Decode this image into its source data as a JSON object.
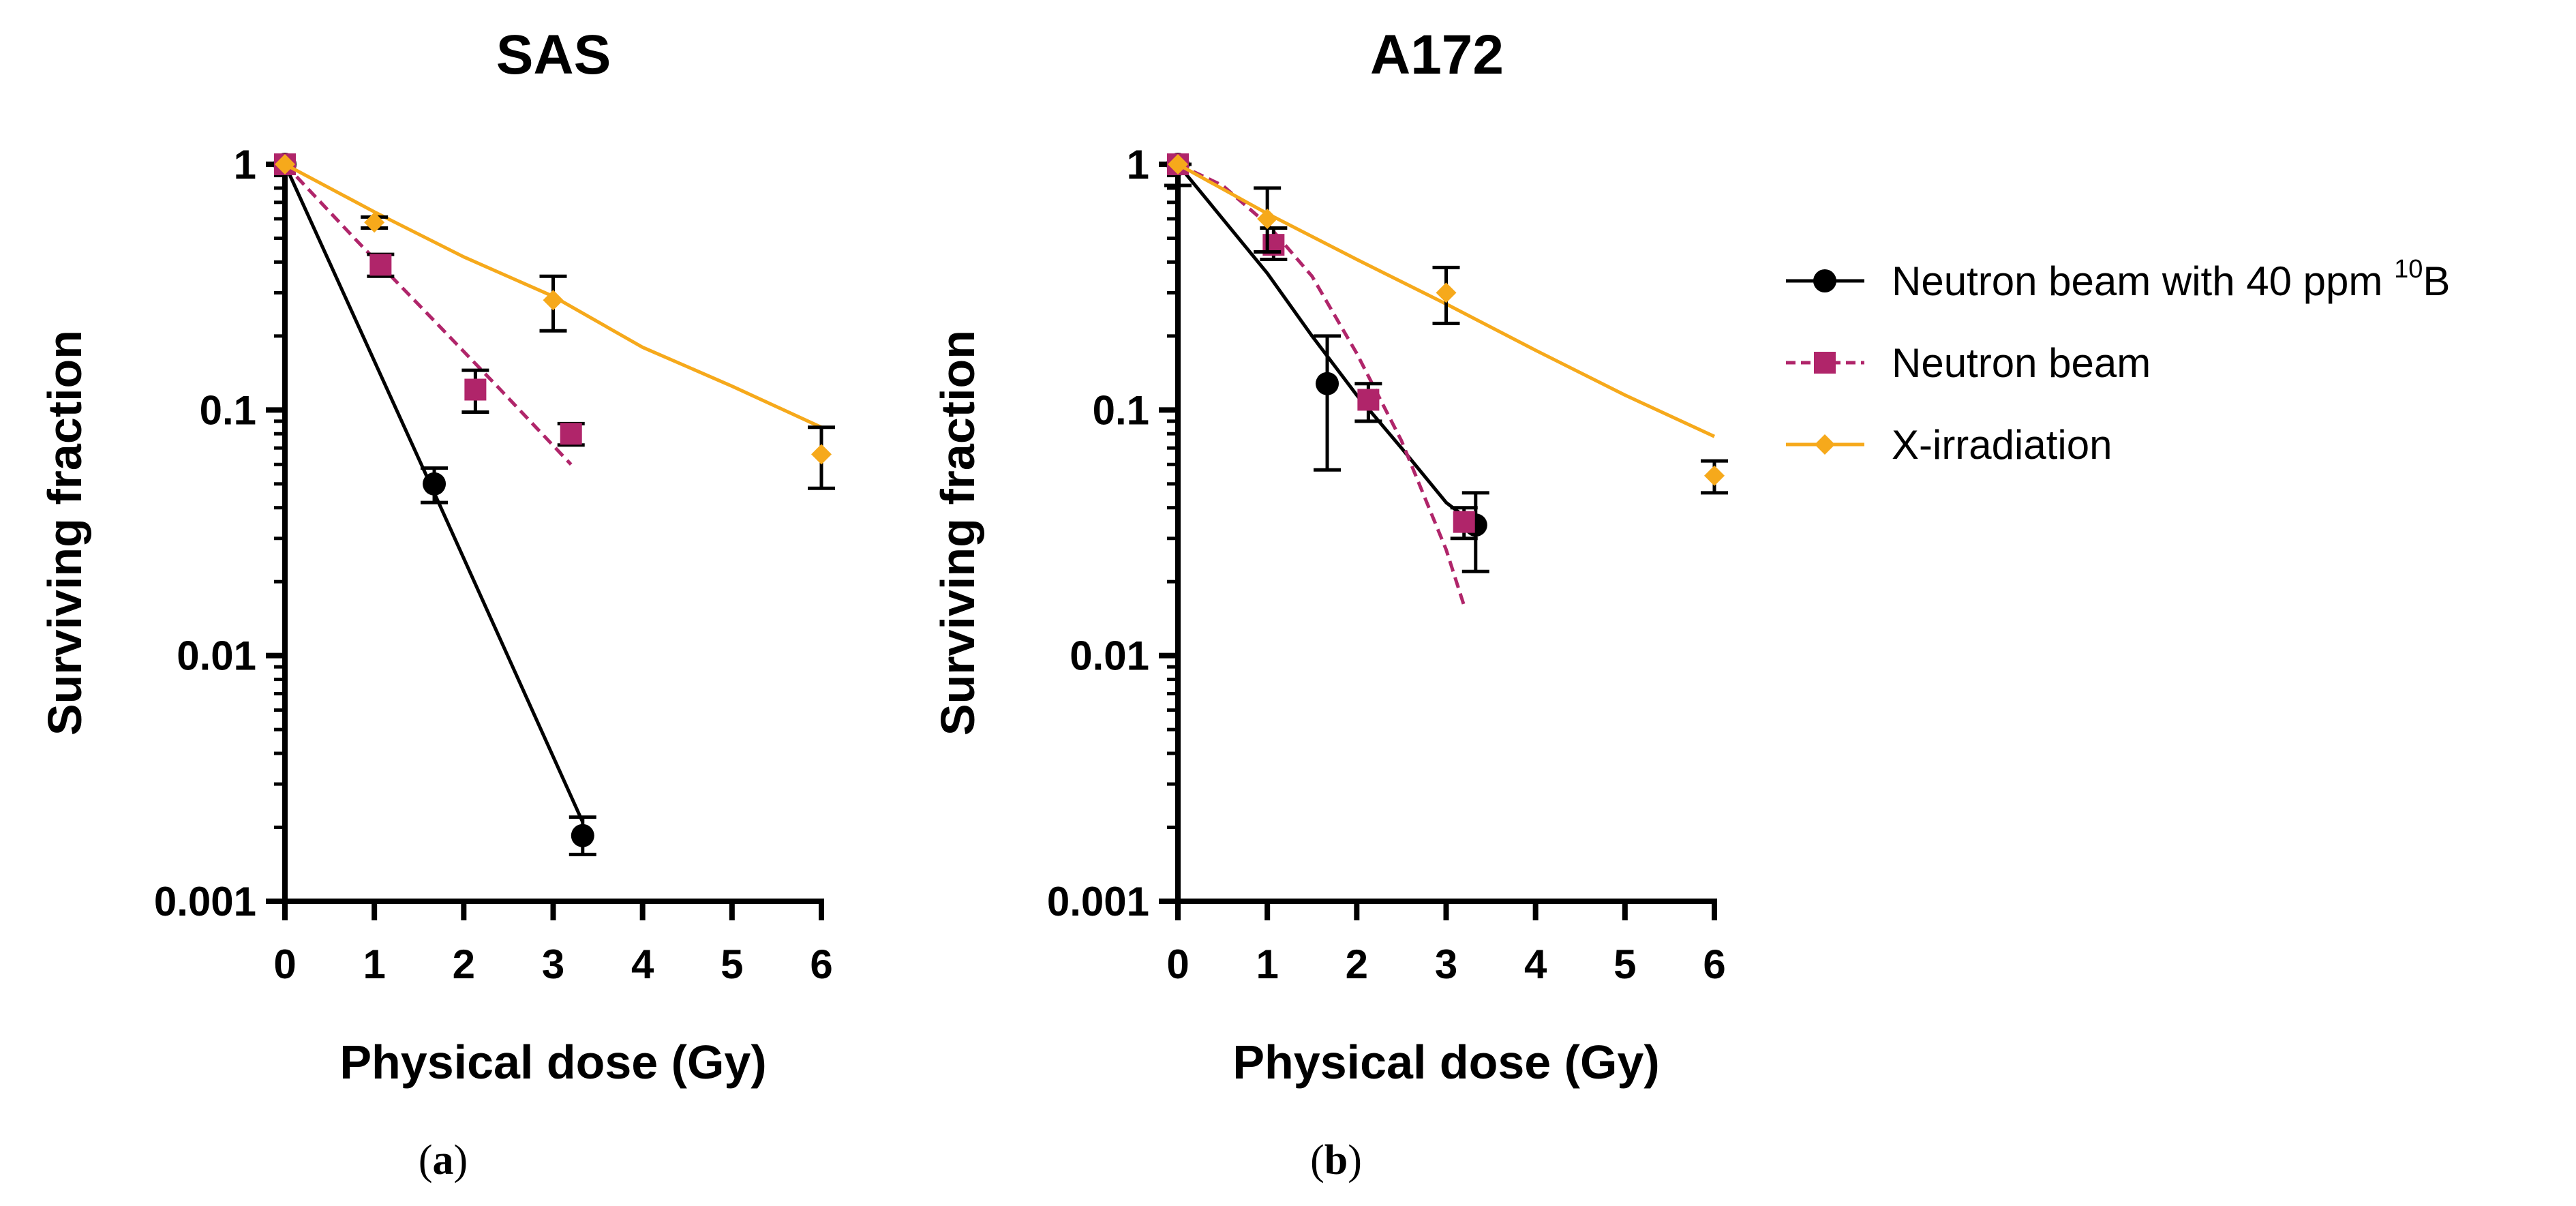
{
  "chart_data": [
    {
      "type": "line",
      "title": "SAS",
      "caption_letter": "a",
      "xlabel": "Physical dose (Gy)",
      "ylabel": "Surviving fraction",
      "xlim": [
        0,
        6
      ],
      "ylim": [
        0.001,
        1
      ],
      "yscale": "log",
      "xticks": [
        "0",
        "1",
        "2",
        "3",
        "4",
        "5",
        "6"
      ],
      "yticks": [
        "0.001",
        "0.01",
        "0.1",
        "1"
      ],
      "series": [
        {
          "name": "Neutron beam with 40 ppm 10B",
          "color": "#000000",
          "dash": "solid",
          "marker": "circle",
          "points": [
            {
              "x": 0,
              "y": 1.0,
              "lo": 1.0,
              "hi": 1.0
            },
            {
              "x": 1.67,
              "y": 0.05,
              "lo": 0.042,
              "hi": 0.058
            },
            {
              "x": 3.33,
              "y": 0.00185,
              "lo": 0.00155,
              "hi": 0.0022
            }
          ],
          "fit": [
            [
              0,
              1.0
            ],
            [
              1.67,
              0.046
            ],
            [
              3.33,
              0.0021
            ]
          ]
        },
        {
          "name": "Neutron beam",
          "color": "#b0256a",
          "dash": "dashed",
          "marker": "square",
          "points": [
            {
              "x": 0,
              "y": 1.0,
              "lo": 1.0,
              "hi": 1.0
            },
            {
              "x": 1.07,
              "y": 0.39,
              "lo": 0.35,
              "hi": 0.43
            },
            {
              "x": 2.13,
              "y": 0.121,
              "lo": 0.098,
              "hi": 0.145
            },
            {
              "x": 3.2,
              "y": 0.08,
              "lo": 0.072,
              "hi": 0.088
            }
          ],
          "fit": [
            [
              0,
              1.0
            ],
            [
              0.8,
              0.49
            ],
            [
              1.6,
              0.245
            ],
            [
              2.4,
              0.122
            ],
            [
              3.2,
              0.06
            ]
          ]
        },
        {
          "name": "X-irradiation",
          "color": "#f6a91b",
          "dash": "solid",
          "marker": "diamond",
          "points": [
            {
              "x": 0,
              "y": 1.0,
              "lo": 1.0,
              "hi": 1.0
            },
            {
              "x": 1.0,
              "y": 0.58,
              "lo": 0.55,
              "hi": 0.61
            },
            {
              "x": 3.0,
              "y": 0.28,
              "lo": 0.21,
              "hi": 0.35
            },
            {
              "x": 6.0,
              "y": 0.066,
              "lo": 0.048,
              "hi": 0.085
            }
          ],
          "fit": [
            [
              0,
              1.0
            ],
            [
              1,
              0.64
            ],
            [
              2,
              0.42
            ],
            [
              3,
              0.29
            ],
            [
              4,
              0.18
            ],
            [
              5,
              0.125
            ],
            [
              6,
              0.085
            ]
          ]
        }
      ]
    },
    {
      "type": "line",
      "title": "A172",
      "caption_letter": "b",
      "xlabel": "Physical dose (Gy)",
      "ylabel": "Surviving fraction",
      "xlim": [
        0,
        6
      ],
      "ylim": [
        0.001,
        1
      ],
      "yscale": "log",
      "xticks": [
        "0",
        "1",
        "2",
        "3",
        "4",
        "5",
        "6"
      ],
      "yticks": [
        "0.001",
        "0.01",
        "0.1",
        "1"
      ],
      "series": [
        {
          "name": "Neutron beam with 40 ppm 10B",
          "color": "#000000",
          "dash": "solid",
          "marker": "circle",
          "points": [
            {
              "x": 0,
              "y": 1.0,
              "lo": 0.82,
              "hi": 1.0
            },
            {
              "x": 1.67,
              "y": 0.128,
              "lo": 0.057,
              "hi": 0.2
            },
            {
              "x": 3.33,
              "y": 0.034,
              "lo": 0.022,
              "hi": 0.046
            }
          ],
          "fit": [
            [
              0,
              1.0
            ],
            [
              0.5,
              0.6
            ],
            [
              1.0,
              0.36
            ],
            [
              1.5,
              0.2
            ],
            [
              2.0,
              0.115
            ],
            [
              2.5,
              0.07
            ],
            [
              3.0,
              0.042
            ],
            [
              3.33,
              0.034
            ]
          ]
        },
        {
          "name": "Neutron beam",
          "color": "#b0256a",
          "dash": "dashed",
          "marker": "square",
          "points": [
            {
              "x": 0,
              "y": 1.0,
              "lo": 1.0,
              "hi": 1.0
            },
            {
              "x": 1.07,
              "y": 0.47,
              "lo": 0.41,
              "hi": 0.55
            },
            {
              "x": 2.13,
              "y": 0.11,
              "lo": 0.09,
              "hi": 0.128
            },
            {
              "x": 3.2,
              "y": 0.035,
              "lo": 0.03,
              "hi": 0.04
            }
          ],
          "fit": [
            [
              0,
              1.0
            ],
            [
              0.5,
              0.82
            ],
            [
              1.0,
              0.57
            ],
            [
              1.5,
              0.35
            ],
            [
              2.0,
              0.17
            ],
            [
              2.5,
              0.075
            ],
            [
              3.0,
              0.027
            ],
            [
              3.2,
              0.016
            ]
          ]
        },
        {
          "name": "X-irradiation",
          "color": "#f6a91b",
          "dash": "solid",
          "marker": "diamond",
          "points": [
            {
              "x": 0,
              "y": 1.0,
              "lo": 1.0,
              "hi": 1.0
            },
            {
              "x": 1.0,
              "y": 0.6,
              "lo": 0.44,
              "hi": 0.8
            },
            {
              "x": 3.0,
              "y": 0.3,
              "lo": 0.225,
              "hi": 0.38
            },
            {
              "x": 6.0,
              "y": 0.054,
              "lo": 0.046,
              "hi": 0.062
            }
          ],
          "fit": [
            [
              0,
              1.0
            ],
            [
              1,
              0.63
            ],
            [
              2,
              0.41
            ],
            [
              3,
              0.27
            ],
            [
              4,
              0.175
            ],
            [
              5,
              0.115
            ],
            [
              6,
              0.078
            ]
          ]
        }
      ]
    }
  ],
  "legend": {
    "position": "right",
    "items": [
      {
        "label": "Neutron beam with 40 ppm ",
        "sup": "10",
        "suffix": "B",
        "color": "#000000",
        "dash": "solid",
        "marker": "circle"
      },
      {
        "label": "Neutron beam",
        "sup": "",
        "suffix": "",
        "color": "#b0256a",
        "dash": "dashed",
        "marker": "square"
      },
      {
        "label": "X-irradiation",
        "sup": "",
        "suffix": "",
        "color": "#f6a91b",
        "dash": "solid",
        "marker": "diamond"
      }
    ]
  }
}
